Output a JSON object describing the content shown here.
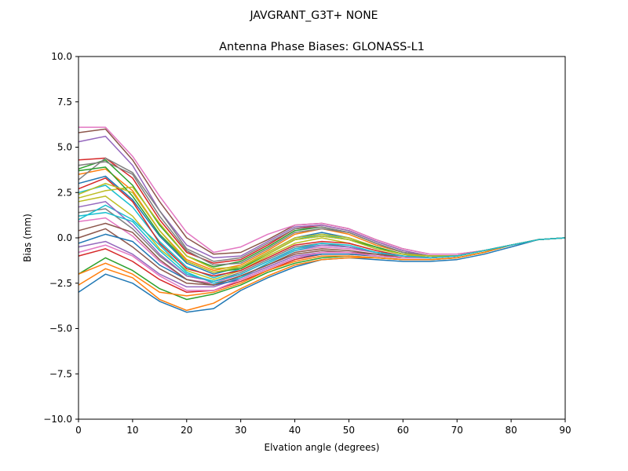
{
  "chart_data": {
    "type": "line",
    "suptitle": "JAVGRANT_G3T+   NONE",
    "title": "Antenna Phase Biases: GLONASS-L1",
    "xlabel": "Elvation angle (degrees)",
    "ylabel": "Bias (mm)",
    "xlim": [
      0,
      90
    ],
    "ylim": [
      -10,
      10
    ],
    "xticks": [
      0,
      10,
      20,
      30,
      40,
      50,
      60,
      70,
      80,
      90
    ],
    "xtick_labels": [
      "0",
      "10",
      "20",
      "30",
      "40",
      "50",
      "60",
      "70",
      "80",
      "90"
    ],
    "yticks": [
      -10,
      -7.5,
      -5,
      -2.5,
      0,
      2.5,
      5,
      7.5,
      10
    ],
    "ytick_labels": [
      "−10.0",
      "−7.5",
      "−5.0",
      "−2.5",
      "0.0",
      "2.5",
      "5.0",
      "7.5",
      "10.0"
    ],
    "grid": false,
    "legend": "none",
    "colors": [
      "#1f77b4",
      "#ff7f0e",
      "#2ca02c",
      "#d62728",
      "#9467bd",
      "#8c564b",
      "#e377c2",
      "#7f7f7f",
      "#bcbd22",
      "#17becf"
    ],
    "x": [
      0,
      5,
      10,
      15,
      20,
      25,
      30,
      35,
      40,
      45,
      50,
      55,
      60,
      65,
      70,
      75,
      80,
      85,
      90
    ],
    "series": [
      {
        "values": [
          -3.0,
          -2.0,
          -2.5,
          -3.5,
          -4.1,
          -3.9,
          -2.9,
          -2.2,
          -1.6,
          -1.2,
          -1.1,
          -1.2,
          -1.3,
          -1.3,
          -1.2,
          -0.9,
          -0.5,
          -0.1,
          0.0
        ]
      },
      {
        "values": [
          -2.6,
          -1.7,
          -2.2,
          -3.4,
          -4.0,
          -3.6,
          -2.8,
          -2.1,
          -1.5,
          -1.2,
          -1.1,
          -1.1,
          -1.2,
          -1.2,
          -1.1,
          -0.8,
          -0.4,
          -0.1,
          0.0
        ]
      },
      {
        "values": [
          -2.0,
          -1.1,
          -1.8,
          -2.8,
          -3.4,
          -3.1,
          -2.6,
          -1.9,
          -1.4,
          -1.1,
          -1.0,
          -1.1,
          -1.2,
          -1.2,
          -1.1,
          -0.8,
          -0.4,
          -0.1,
          0.0
        ]
      },
      {
        "values": [
          -1.0,
          -0.6,
          -1.3,
          -2.3,
          -3.0,
          -2.9,
          -2.4,
          -1.8,
          -1.2,
          -0.9,
          -0.9,
          -1.0,
          -1.1,
          -1.1,
          -1.0,
          -0.7,
          -0.4,
          -0.1,
          0.0
        ]
      },
      {
        "values": [
          -0.5,
          -0.2,
          -0.9,
          -2.0,
          -2.7,
          -2.7,
          -2.2,
          -1.6,
          -1.0,
          -0.8,
          -0.8,
          -0.9,
          -1.0,
          -1.1,
          -1.0,
          -0.7,
          -0.4,
          -0.1,
          0.0
        ]
      },
      {
        "values": [
          0.0,
          0.5,
          -0.5,
          -1.7,
          -2.5,
          -2.6,
          -2.1,
          -1.5,
          -0.9,
          -0.7,
          -0.8,
          -0.9,
          -1.0,
          -1.1,
          -1.0,
          -0.7,
          -0.4,
          -0.1,
          0.0
        ]
      },
      {
        "values": [
          0.9,
          1.1,
          0.1,
          -1.3,
          -2.3,
          -2.5,
          -2.0,
          -1.3,
          -0.7,
          -0.5,
          -0.6,
          -0.8,
          -1.0,
          -1.1,
          -1.0,
          -0.7,
          -0.4,
          -0.1,
          0.0
        ]
      },
      {
        "values": [
          1.4,
          1.6,
          0.5,
          -1.0,
          -2.1,
          -2.4,
          -1.9,
          -1.2,
          -0.5,
          -0.3,
          -0.5,
          -0.8,
          -1.0,
          -1.1,
          -1.0,
          -0.7,
          -0.4,
          -0.1,
          0.0
        ]
      },
      {
        "values": [
          2.0,
          2.3,
          1.2,
          -0.6,
          -1.8,
          -2.3,
          -1.8,
          -1.0,
          -0.3,
          0.0,
          -0.3,
          -0.7,
          -1.0,
          -1.1,
          -1.0,
          -0.7,
          -0.4,
          -0.1,
          0.0
        ]
      },
      {
        "values": [
          2.5,
          2.9,
          1.7,
          -0.2,
          -1.6,
          -2.2,
          -1.7,
          -0.9,
          -0.1,
          0.2,
          -0.1,
          -0.6,
          -0.9,
          -1.1,
          -1.0,
          -0.7,
          -0.4,
          -0.1,
          0.0
        ]
      },
      {
        "values": [
          3.0,
          3.4,
          2.1,
          0.1,
          -1.4,
          -2.0,
          -1.6,
          -0.8,
          0.0,
          0.3,
          0.0,
          -0.5,
          -0.9,
          -1.0,
          -1.0,
          -0.7,
          -0.4,
          -0.1,
          0.0
        ]
      },
      {
        "values": [
          3.5,
          3.8,
          2.6,
          0.4,
          -1.2,
          -1.8,
          -1.5,
          -0.7,
          0.2,
          0.5,
          0.2,
          -0.4,
          -0.8,
          -1.0,
          -1.0,
          -0.7,
          -0.4,
          -0.1,
          0.0
        ]
      },
      {
        "values": [
          3.8,
          4.3,
          2.9,
          0.7,
          -1.0,
          -1.6,
          -1.3,
          -0.5,
          0.4,
          0.6,
          0.3,
          -0.3,
          -0.8,
          -1.0,
          -1.0,
          -0.7,
          -0.4,
          -0.1,
          0.0
        ]
      },
      {
        "values": [
          4.3,
          4.4,
          3.3,
          1.0,
          -0.8,
          -1.4,
          -1.2,
          -0.4,
          0.5,
          0.7,
          0.4,
          -0.2,
          -0.7,
          -1.0,
          -1.0,
          -0.7,
          -0.4,
          -0.1,
          0.0
        ]
      },
      {
        "values": [
          5.3,
          5.6,
          4.0,
          1.5,
          -0.4,
          -1.1,
          -1.0,
          -0.2,
          0.6,
          0.7,
          0.4,
          -0.2,
          -0.7,
          -1.0,
          -1.0,
          -0.7,
          -0.4,
          -0.1,
          0.0
        ]
      },
      {
        "values": [
          5.8,
          6.0,
          4.3,
          2.0,
          0.0,
          -0.9,
          -0.8,
          -0.1,
          0.7,
          0.8,
          0.5,
          -0.1,
          -0.6,
          -0.9,
          -0.9,
          -0.7,
          -0.4,
          -0.1,
          0.0
        ]
      },
      {
        "values": [
          6.1,
          6.1,
          4.5,
          2.3,
          0.3,
          -0.8,
          -0.5,
          0.2,
          0.7,
          0.8,
          0.5,
          -0.1,
          -0.6,
          -0.9,
          -0.9,
          -0.7,
          -0.4,
          -0.1,
          0.0
        ]
      },
      {
        "values": [
          3.2,
          4.4,
          3.6,
          1.5,
          -0.6,
          -1.3,
          -1.1,
          -0.3,
          0.5,
          0.6,
          0.3,
          -0.3,
          -0.8,
          -1.0,
          -1.0,
          -0.7,
          -0.4,
          -0.1,
          0.0
        ]
      },
      {
        "values": [
          2.2,
          2.6,
          2.8,
          0.8,
          -1.0,
          -1.7,
          -1.6,
          -0.8,
          0.0,
          0.2,
          0.0,
          -0.5,
          -0.9,
          -1.1,
          -1.0,
          -0.7,
          -0.4,
          -0.1,
          0.0
        ]
      },
      {
        "values": [
          1.0,
          1.8,
          1.0,
          -0.4,
          -1.9,
          -2.5,
          -2.2,
          -1.4,
          -0.7,
          -0.4,
          -0.5,
          -0.8,
          -1.0,
          -1.1,
          -1.0,
          -0.7,
          -0.4,
          -0.1,
          0.0
        ]
      },
      {
        "values": [
          -0.3,
          0.2,
          -0.2,
          -1.5,
          -2.3,
          -2.6,
          -2.3,
          -1.7,
          -1.1,
          -0.9,
          -0.9,
          -1.0,
          -1.1,
          -1.1,
          -1.0,
          -0.7,
          -0.4,
          -0.1,
          0.0
        ]
      },
      {
        "values": [
          -2.0,
          -1.4,
          -2.0,
          -3.0,
          -3.2,
          -3.0,
          -2.5,
          -1.8,
          -1.3,
          -1.0,
          -1.0,
          -1.1,
          -1.2,
          -1.2,
          -1.1,
          -0.8,
          -0.4,
          -0.1,
          0.0
        ]
      },
      {
        "values": [
          3.7,
          3.9,
          2.3,
          0.2,
          -1.3,
          -1.9,
          -1.7,
          -0.9,
          -0.1,
          0.1,
          -0.1,
          -0.5,
          -0.9,
          -1.0,
          -1.0,
          -0.7,
          -0.4,
          -0.1,
          0.0
        ]
      },
      {
        "values": [
          2.7,
          3.3,
          2.0,
          -0.3,
          -1.7,
          -2.1,
          -1.8,
          -1.1,
          -0.4,
          -0.2,
          -0.3,
          -0.7,
          -1.0,
          -1.1,
          -1.0,
          -0.7,
          -0.4,
          -0.1,
          0.0
        ]
      },
      {
        "values": [
          1.7,
          2.0,
          0.7,
          -0.9,
          -2.1,
          -2.4,
          -2.0,
          -1.3,
          -0.6,
          -0.4,
          -0.5,
          -0.8,
          -1.0,
          -1.1,
          -1.0,
          -0.7,
          -0.4,
          -0.1,
          0.0
        ]
      },
      {
        "values": [
          0.4,
          0.8,
          0.3,
          -1.2,
          -2.3,
          -2.6,
          -2.1,
          -1.5,
          -0.8,
          -0.6,
          -0.7,
          -0.9,
          -1.1,
          -1.1,
          -1.0,
          -0.7,
          -0.4,
          -0.1,
          0.0
        ]
      },
      {
        "values": [
          -0.8,
          -0.4,
          -1.0,
          -2.1,
          -2.9,
          -2.9,
          -2.3,
          -1.7,
          -1.1,
          -0.8,
          -0.8,
          -1.0,
          -1.1,
          -1.1,
          -1.0,
          -0.7,
          -0.4,
          -0.1,
          0.0
        ]
      },
      {
        "values": [
          4.0,
          4.2,
          3.5,
          1.2,
          -0.7,
          -1.5,
          -1.4,
          -0.6,
          0.3,
          0.5,
          0.3,
          -0.3,
          -0.8,
          -1.0,
          -1.0,
          -0.7,
          -0.4,
          -0.1,
          0.0
        ]
      },
      {
        "values": [
          2.4,
          3.0,
          2.5,
          0.4,
          -1.3,
          -1.9,
          -1.6,
          -0.9,
          -0.1,
          0.1,
          -0.1,
          -0.6,
          -0.9,
          -1.0,
          -1.0,
          -0.7,
          -0.4,
          -0.1,
          0.0
        ]
      },
      {
        "values": [
          1.2,
          1.4,
          0.9,
          -0.7,
          -2.0,
          -2.4,
          -2.0,
          -1.3,
          -0.6,
          -0.3,
          -0.4,
          -0.8,
          -1.0,
          -1.1,
          -1.0,
          -0.7,
          -0.4,
          -0.1,
          0.0
        ]
      }
    ]
  }
}
